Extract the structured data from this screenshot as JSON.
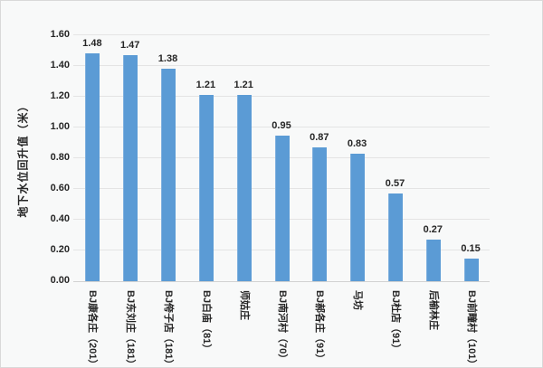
{
  "chart_data": {
    "type": "bar",
    "title": "",
    "xlabel": "",
    "ylabel": "地下水位回升值（米）",
    "ylim": [
      0,
      1.6
    ],
    "ytick_step": 0.2,
    "yticks": [
      "0.00",
      "0.20",
      "0.40",
      "0.60",
      "0.80",
      "1.00",
      "1.20",
      "1.40",
      "1.60"
    ],
    "categories": [
      "BJ康各庄（201）",
      "BJ东刘庄（181）",
      "BJ侉子店（181）",
      "BJ白庙（81）",
      "师姑庄",
      "BJ南河村（70）",
      "BJ郝各庄（91）",
      "马坊",
      "BJ杜店（91）",
      "后榆林庄",
      "BJ前疃村（101）"
    ],
    "values": [
      1.48,
      1.47,
      1.38,
      1.21,
      1.21,
      0.95,
      0.87,
      0.83,
      0.57,
      0.27,
      0.15
    ],
    "data_labels": [
      "1.48",
      "1.47",
      "1.38",
      "1.21",
      "1.21",
      "0.95",
      "0.87",
      "0.83",
      "0.57",
      "0.27",
      "0.15"
    ],
    "grid": true,
    "legend_position": "none"
  },
  "colors": {
    "bar": "#5b9bd5",
    "bar_highlight": "#7fb0de",
    "background": "#f8f9f9",
    "gridline": "#e4e4e4",
    "axis_line": "#d2d2d2",
    "text": "#262626",
    "border": "#d9d9d9"
  }
}
